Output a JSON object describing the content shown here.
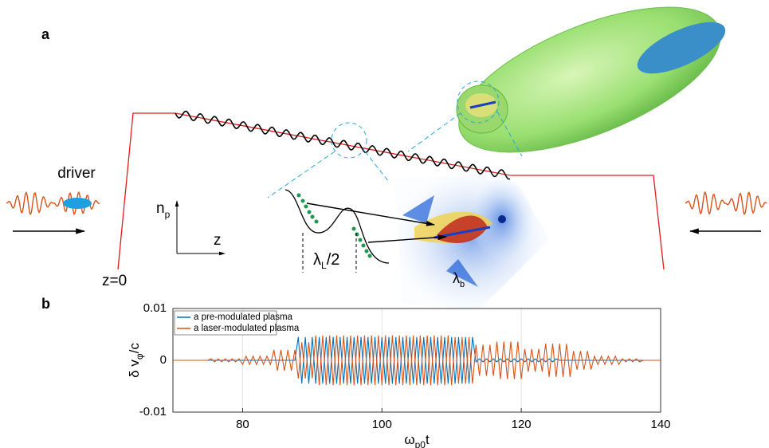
{
  "panel_a": {
    "label": "a",
    "driver": "driver",
    "z0": "z=0",
    "axis_n": "n",
    "axis_n_sub": "p",
    "axis_z": "z",
    "lambda_L": "λ",
    "lambda_L_sub": "L",
    "lambda_L_tail": "/2",
    "lambda_b": "λ",
    "lambda_b_sub": "b"
  },
  "panel_b_label": "b",
  "chart_data": {
    "type": "line",
    "y_label": {
      "text": "δ v",
      "sub": "φ",
      "tail": "/c"
    },
    "x_label": {
      "text": "ω",
      "sub": "p0",
      "tail": "t"
    },
    "xlim": [
      70,
      140
    ],
    "xticks": [
      80,
      100,
      120,
      140
    ],
    "ylim": [
      -0.01,
      0.01
    ],
    "yticks": [
      -0.01,
      0,
      0.01
    ],
    "grid": true,
    "legend": "upper-left",
    "x": [
      70,
      70.5,
      71,
      71.5,
      72,
      72.5,
      73,
      73.5,
      74,
      74.5,
      75,
      75.5,
      76,
      76.5,
      77,
      77.5,
      78,
      78.5,
      79,
      79.5,
      80,
      80.5,
      81,
      81.5,
      82,
      82.5,
      83,
      83.5,
      84,
      84.5,
      85,
      85.5,
      86,
      86.5,
      87,
      87.5,
      88,
      88.5,
      89,
      89.5,
      90,
      90.5,
      91,
      91.5,
      92,
      92.5,
      93,
      93.5,
      94,
      94.5,
      95,
      95.5,
      96,
      96.5,
      97,
      97.5,
      98,
      98.5,
      99,
      99.5,
      100,
      100.5,
      101,
      101.5,
      102,
      102.5,
      103,
      103.5,
      104,
      104.5,
      105,
      105.5,
      106,
      106.5,
      107,
      107.5,
      108,
      108.5,
      109,
      109.5,
      110,
      110.5,
      111,
      111.5,
      112,
      112.5,
      113,
      113.5,
      114,
      114.5,
      115,
      115.5,
      116,
      116.5,
      117,
      117.5,
      118,
      118.5,
      119,
      119.5,
      120,
      120.5,
      121,
      121.5,
      122,
      122.5,
      123,
      123.5,
      124,
      124.5,
      125,
      125.5,
      126,
      126.5,
      127,
      127.5,
      128,
      128.5,
      129,
      129.5,
      130,
      130.5,
      131,
      131.5,
      132,
      132.5,
      133,
      133.5,
      134,
      134.5,
      135,
      135.5,
      136,
      136.5,
      137,
      137.5,
      138,
      138.5,
      139,
      139.5,
      140
    ],
    "series": [
      {
        "name": "a pre-modulated plasma",
        "color": "#0072bd",
        "values": [
          0,
          0,
          0,
          0,
          0,
          0,
          0,
          0,
          0,
          0,
          0,
          0,
          0,
          0,
          0,
          0,
          0,
          0,
          0,
          0,
          0,
          0,
          0,
          0,
          0,
          0,
          0,
          0,
          0,
          0,
          0,
          0,
          0,
          0,
          0,
          0,
          0.0045,
          -0.0045,
          0.0045,
          -0.0045,
          0.0045,
          -0.0045,
          0.0045,
          -0.0045,
          0.0045,
          -0.0045,
          0.0045,
          -0.0045,
          0.0045,
          -0.0045,
          0.0045,
          -0.0045,
          0.0045,
          -0.0045,
          0.0045,
          -0.0045,
          0.0045,
          -0.0045,
          0.0045,
          -0.0045,
          0.0045,
          -0.0045,
          0.0045,
          -0.0045,
          0.0045,
          -0.0045,
          0.0045,
          -0.0045,
          0.0045,
          -0.0045,
          0.0045,
          -0.0045,
          0.0045,
          -0.0045,
          0.0045,
          -0.0045,
          0.0045,
          -0.0045,
          0.0045,
          -0.0045,
          0.0045,
          -0.0045,
          0.0045,
          -0.0045,
          0.0045,
          -0.0045,
          0.0045,
          -0.0003,
          0.0003,
          -0.0003,
          0.0003,
          -0.0003,
          0.0003,
          -0.0003,
          0.0003,
          -0.0003,
          0.0003,
          -0.0003,
          0.0003,
          -0.0003,
          0.0003,
          -0.0003,
          0.0003,
          -0.0003,
          0.0003,
          -0.0003,
          0.0003,
          -0.0003,
          0.0003,
          -0.0003,
          0.0003,
          0,
          0,
          0,
          0,
          0,
          0,
          0,
          0,
          0,
          0,
          0,
          0,
          0,
          0,
          0,
          0,
          0,
          0,
          0,
          0,
          0,
          0,
          0,
          0,
          0,
          0,
          0,
          0,
          0,
          0
        ]
      },
      {
        "name": "a laser-modulated plasma",
        "color": "#d95319",
        "values": [
          0,
          0,
          0,
          0,
          0,
          0,
          0,
          0,
          0,
          0,
          0,
          0.0003,
          -0.0003,
          0.0003,
          -0.0003,
          0.0003,
          -0.0003,
          0.0003,
          -0.0003,
          0.0003,
          -0.0008,
          0.0008,
          -0.0008,
          0.0008,
          -0.0008,
          0.0008,
          -0.0008,
          0.0008,
          -0.0008,
          0.002,
          -0.002,
          0.002,
          -0.002,
          0.002,
          -0.002,
          0.002,
          -0.0035,
          0.0035,
          -0.0035,
          0.0035,
          -0.0035,
          0.0048,
          -0.0048,
          0.0048,
          -0.0048,
          0.0048,
          -0.0048,
          0.0048,
          -0.0048,
          0.0048,
          -0.0048,
          0.0048,
          -0.0048,
          0.0048,
          -0.0048,
          0.0048,
          -0.0048,
          0.0048,
          -0.0048,
          0.0048,
          -0.0048,
          0.0048,
          -0.0048,
          0.0048,
          -0.0048,
          0.0048,
          -0.0048,
          0.0048,
          -0.0048,
          0.0048,
          -0.0048,
          0.0048,
          -0.0048,
          0.0048,
          -0.0048,
          0.0048,
          -0.0048,
          0.0048,
          -0.0048,
          0.0048,
          -0.0048,
          0.0045,
          -0.0045,
          0.0045,
          -0.0045,
          0.0045,
          -0.0045,
          0.003,
          -0.003,
          0.003,
          -0.003,
          0.003,
          -0.003,
          0.0036,
          -0.0036,
          0.0036,
          -0.0036,
          0.0036,
          -0.0036,
          0.0036,
          -0.0036,
          0.0022,
          -0.0022,
          0.0022,
          -0.0022,
          0.0022,
          -0.0022,
          0.0032,
          -0.0032,
          0.0032,
          -0.0032,
          0.0032,
          -0.0032,
          0.0032,
          -0.0032,
          0.0018,
          -0.0018,
          0.0018,
          -0.0018,
          0.0018,
          -0.0018,
          0.0008,
          -0.0008,
          0.0008,
          -0.0008,
          0.0008,
          -0.0008,
          0.0008,
          -0.0008,
          0.0003,
          -0.0003,
          0.0003,
          -0.0003,
          0.0003,
          -0.0003,
          0,
          0,
          0,
          0,
          0,
          0
        ]
      }
    ]
  }
}
